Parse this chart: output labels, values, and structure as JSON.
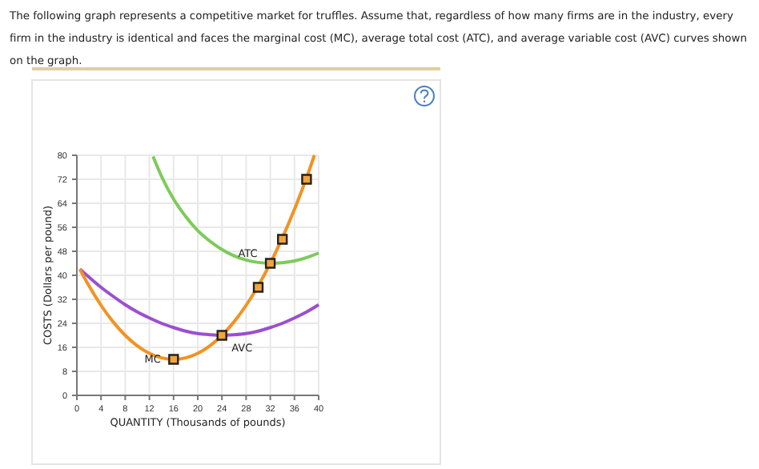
{
  "chart_data": {
    "type": "line",
    "title": "The following graph represents a competitive market for truffles. Assume that, regardless of how many firms are in the industry, every firm in the industry is identical and faces the marginal cost (MC), average total cost (ATC), and average variable cost (AVC) curves shown on the graph.",
    "xlabel": "QUANTITY (Thousands of pounds)",
    "ylabel": "COSTS (Dollars per pound)",
    "xlim": [
      0,
      40
    ],
    "ylim": [
      0,
      80
    ],
    "xticks": [
      0,
      4,
      8,
      12,
      16,
      20,
      24,
      28,
      32,
      36,
      40
    ],
    "yticks": [
      0,
      8,
      16,
      24,
      32,
      40,
      48,
      56,
      64,
      72,
      80
    ],
    "grid": true,
    "series": [
      {
        "name": "ATC",
        "color": "#7dcb5a",
        "x": [
          12.6,
          14,
          16,
          18,
          20,
          22,
          24,
          26,
          28,
          30,
          32,
          34,
          36,
          38,
          40
        ],
        "values": [
          79.6,
          73,
          65.4,
          59.6,
          54.9,
          51.4,
          48.6,
          46.5,
          45.1,
          44.3,
          44,
          44.2,
          44.8,
          45.9,
          47.4
        ]
      },
      {
        "name": "AVC",
        "color": "#9b4fd0",
        "x": [
          0.5,
          2,
          4,
          6,
          8,
          10,
          12,
          14,
          16,
          18,
          20,
          22,
          24,
          26,
          28,
          30,
          32,
          34,
          36,
          38,
          40
        ],
        "values": [
          42.1,
          39.4,
          36,
          33,
          30.2,
          27.8,
          25.8,
          24,
          22.6,
          21.4,
          20.6,
          20.2,
          20,
          20.2,
          20.6,
          21.4,
          22.6,
          24,
          25.8,
          27.8,
          30.2
        ]
      },
      {
        "name": "MC",
        "color": "#f39221",
        "x": [
          0.5,
          2,
          4,
          6,
          8,
          10,
          12,
          14,
          16,
          18,
          20,
          22,
          24,
          26,
          28,
          30,
          32,
          34,
          36,
          38,
          39.3
        ],
        "values": [
          42,
          36.5,
          30,
          24.5,
          20,
          16.5,
          14,
          12.5,
          12,
          12.5,
          14,
          16.5,
          20,
          24.5,
          30,
          36.5,
          44,
          52.5,
          62,
          72.5,
          80
        ]
      },
      {
        "type": "scatter",
        "marker": "square",
        "color": "#f5a33a",
        "x": [
          16,
          24,
          30,
          32,
          34,
          38
        ],
        "values": [
          12,
          20,
          36,
          44,
          52,
          72
        ]
      }
    ]
  }
}
